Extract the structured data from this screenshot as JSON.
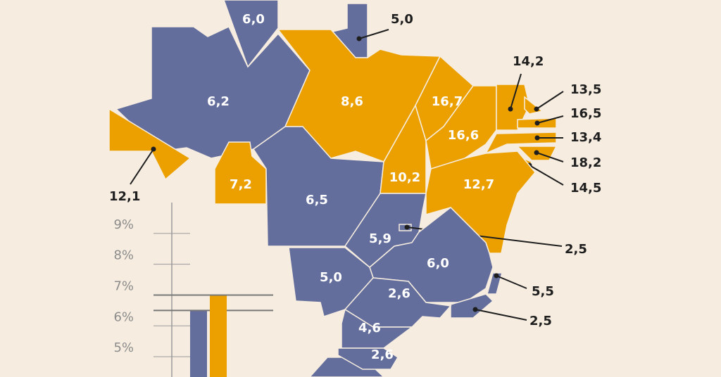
{
  "map": {
    "regions": [
      {
        "label": "6,0",
        "color": "#646e9c"
      },
      {
        "label": "5,0",
        "color": "#646e9c"
      },
      {
        "label": "6,2",
        "color": "#646e9c"
      },
      {
        "label": "12,1",
        "color": "#eba000"
      },
      {
        "label": "8,6",
        "color": "#eba000"
      },
      {
        "label": "7,2",
        "color": "#eba000"
      },
      {
        "label": "6,5",
        "color": "#646e9c"
      },
      {
        "label": "10,2",
        "color": "#eba000"
      },
      {
        "label": "16,7",
        "color": "#eba000"
      },
      {
        "label": "16,6",
        "color": "#eba000"
      },
      {
        "label": "14,2",
        "color": "#eba000"
      },
      {
        "label": "13,5",
        "color": "#eba000"
      },
      {
        "label": "16,5",
        "color": "#eba000"
      },
      {
        "label": "13,4",
        "color": "#eba000"
      },
      {
        "label": "18,2",
        "color": "#eba000"
      },
      {
        "label": "14,5",
        "color": "#eba000"
      },
      {
        "label": "12,7",
        "color": "#eba000"
      },
      {
        "label": "5,9",
        "color": "#646e9c"
      },
      {
        "label": "2,5",
        "color": "#646e9c"
      },
      {
        "label": "6,0",
        "color": "#646e9c"
      },
      {
        "label": "5,5",
        "color": "#646e9c"
      },
      {
        "label": "2,5",
        "color": "#646e9c"
      },
      {
        "label": "5,0",
        "color": "#646e9c"
      },
      {
        "label": "2,6",
        "color": "#646e9c"
      },
      {
        "label": "4,6",
        "color": "#646e9c"
      },
      {
        "label": "2,6",
        "color": "#646e9c"
      }
    ]
  },
  "chart_data": {
    "type": "bar",
    "ylim": [
      4.34,
      10
    ],
    "yticks": [
      {
        "value": 9,
        "label": "9%"
      },
      {
        "value": 8,
        "label": "8%"
      },
      {
        "value": 7,
        "label": "7%"
      },
      {
        "value": 6,
        "label": "6%"
      },
      {
        "value": 5,
        "label": "5%"
      }
    ],
    "series": [
      {
        "color": "#646e9c",
        "values": [
          6.5
        ]
      },
      {
        "color": "#eba000",
        "values": [
          7.0
        ]
      }
    ]
  }
}
